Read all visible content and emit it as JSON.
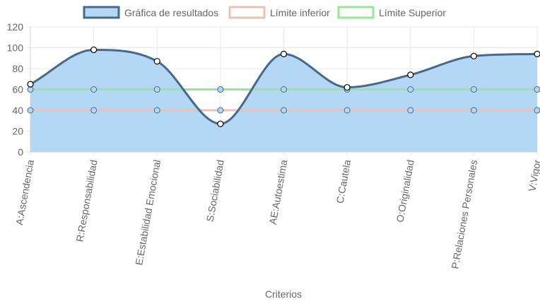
{
  "chart_data": {
    "type": "area",
    "categories": [
      "A:Ascendencia",
      "R:Responsabilidad",
      "E:Estabilidad Emocional",
      "S:Sociabilidad",
      "AE:Autoestima",
      "C:Cautela",
      "O:Originalidad",
      "P:Relaciones Personales",
      "V:Vigor"
    ],
    "series": [
      {
        "name": "Gráfica de resultados",
        "values": [
          65,
          98,
          87,
          27,
          94,
          62,
          74,
          92,
          94
        ],
        "line_color": "#46698c",
        "fill_color": "#b4d7f5",
        "fill": true
      },
      {
        "name": "Límite inferior",
        "values": [
          40,
          40,
          40,
          40,
          40,
          40,
          40,
          40,
          40
        ],
        "line_color": "#e6c3b9",
        "fill": false
      },
      {
        "name": "Límite Superior",
        "values": [
          60,
          60,
          60,
          60,
          60,
          60,
          60,
          60,
          60
        ],
        "line_color": "#96e696",
        "fill": false
      }
    ],
    "xlabel": "Criterios",
    "ylabel": "",
    "ylim": [
      0,
      120
    ],
    "yticks": [
      0,
      20,
      40,
      60,
      80,
      100,
      120
    ],
    "grid": true,
    "legend_position": "top"
  }
}
